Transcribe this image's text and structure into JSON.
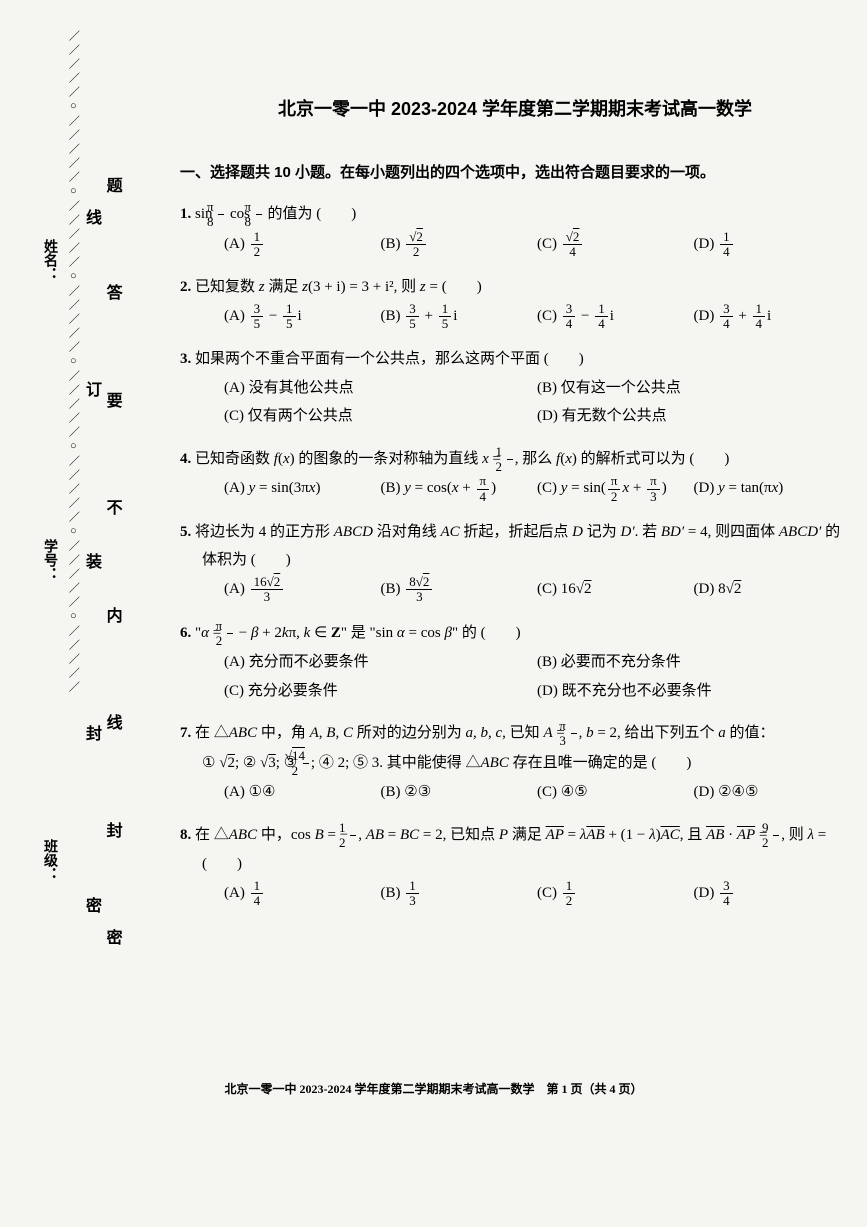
{
  "page": {
    "title": "北京一零一中 2023-2024 学年度第二学期期末考试高一数学",
    "section_heading": "一、选择题共 10 小题。在每小题列出的四个选项中，选出符合题目要求的一项。",
    "footer": "北京一零一中 2023-2024 学年度第二学期期末考试高一数学　第 1 页（共 4 页）",
    "font_family": "SimSun",
    "background_color": "#f5f5f2",
    "text_color": "#000000",
    "title_fontsize_pt": 18,
    "body_fontsize_pt": 15
  },
  "binding": {
    "side_labels": [
      "姓名：",
      "学号：",
      "班级："
    ],
    "seal_chars_top": [
      "题",
      "答",
      "要",
      "不",
      "内",
      "线",
      "封",
      "密"
    ],
    "seal_chars_side": [
      "线",
      "订",
      "装",
      "封",
      "密"
    ],
    "dash_pattern": "／／／／／○／／／／／○／／／／／○／／／／／○／／／／／○／／／／／○／／／／／○／／／／／"
  },
  "questions": [
    {
      "num": "1.",
      "stem_html": "sin <span class='frac'><span class='num'>π</span><span class='den'>8</span></span> cos <span class='frac'><span class='num'>π</span><span class='den'>8</span></span> 的值为 (　　)",
      "layout": "c4",
      "choices": [
        "(A) <span class='frac'><span class='num'>1</span><span class='den'>2</span></span>",
        "(B) <span class='frac'><span class='num'>√<span class='sqrt'>2</span></span><span class='den'>2</span></span>",
        "(C) <span class='frac'><span class='num'>√<span class='sqrt'>2</span></span><span class='den'>4</span></span>",
        "(D) <span class='frac'><span class='num'>1</span><span class='den'>4</span></span>"
      ]
    },
    {
      "num": "2.",
      "stem_html": "已知复数 <span class='ital'>z</span> 满足 <span class='ital'>z</span>(3 + i) = 3 + i², 则 <span class='ital'>z</span> = (　　)",
      "layout": "c4",
      "choices": [
        "(A) <span class='frac'><span class='num'>3</span><span class='den'>5</span></span> − <span class='frac'><span class='num'>1</span><span class='den'>5</span></span>i",
        "(B) <span class='frac'><span class='num'>3</span><span class='den'>5</span></span> + <span class='frac'><span class='num'>1</span><span class='den'>5</span></span>i",
        "(C) <span class='frac'><span class='num'>3</span><span class='den'>4</span></span> − <span class='frac'><span class='num'>1</span><span class='den'>4</span></span>i",
        "(D) <span class='frac'><span class='num'>3</span><span class='den'>4</span></span> + <span class='frac'><span class='num'>1</span><span class='den'>4</span></span>i"
      ]
    },
    {
      "num": "3.",
      "stem_html": "如果两个不重合平面有一个公共点，那么这两个平面 (　　)",
      "layout": "c2",
      "choices": [
        "(A) 没有其他公共点",
        "(B) 仅有这一个公共点",
        "(C) 仅有两个公共点",
        "(D) 有无数个公共点"
      ]
    },
    {
      "num": "4.",
      "stem_html": "已知奇函数 <span class='ital'>f</span>(<span class='ital'>x</span>) 的图象的一条对称轴为直线 <span class='ital'>x</span> = <span class='frac'><span class='num'>1</span><span class='den'>2</span></span>, 那么 <span class='ital'>f</span>(<span class='ital'>x</span>) 的解析式可以为 (　　)",
      "layout": "c4",
      "choices": [
        "(A) <span class='ital'>y</span> = sin(3π<span class='ital'>x</span>)",
        "(B) <span class='ital'>y</span> = cos(<span class='ital'>x</span> + <span class='frac'><span class='num'>π</span><span class='den'>4</span></span>)",
        "(C) <span class='ital'>y</span> = sin(<span class='frac'><span class='num'>π</span><span class='den'>2</span></span><span class='ital'>x</span> + <span class='frac'><span class='num'>π</span><span class='den'>3</span></span>)",
        "(D) <span class='ital'>y</span> = tan(π<span class='ital'>x</span>)"
      ]
    },
    {
      "num": "5.",
      "stem_html": "将边长为 4 的正方形 <span class='ital'>ABCD</span> 沿对角线 <span class='ital'>AC</span> 折起，折起后点 <span class='ital'>D</span> 记为 <span class='ital'>D′</span>. 若 <span class='ital'>BD′</span> = 4, 则四面体 <span class='ital'>ABCD′</span> 的体积为 (　　)",
      "layout": "c4",
      "choices": [
        "(A) <span class='frac'><span class='num'>16√<span class='sqrt'>2</span></span><span class='den'>3</span></span>",
        "(B) <span class='frac'><span class='num'>8√<span class='sqrt'>2</span></span><span class='den'>3</span></span>",
        "(C) 16√<span class='sqrt'>2</span>",
        "(D) 8√<span class='sqrt'>2</span>"
      ]
    },
    {
      "num": "6.",
      "stem_html": "\"<span class='ital'>α</span> = <span class='frac'><span class='num'>π</span><span class='den'>2</span></span> − <span class='ital'>β</span> + 2<span class='ital'>k</span>π, <span class='ital'>k</span> ∈ <b>Z</b>\" 是 \"sin <span class='ital'>α</span> = cos <span class='ital'>β</span>\" 的 (　　)",
      "layout": "c2",
      "choices": [
        "(A) 充分而不必要条件",
        "(B) 必要而不充分条件",
        "(C) 充分必要条件",
        "(D) 既不充分也不必要条件"
      ]
    },
    {
      "num": "7.",
      "stem_html": "在 △<span class='ital'>ABC</span> 中，角 <span class='ital'>A</span>, <span class='ital'>B</span>, <span class='ital'>C</span> 所对的边分别为 <span class='ital'>a</span>, <span class='ital'>b</span>, <span class='ital'>c</span>, 已知 <span class='ital'>A</span> = <span class='frac'><span class='num'>π</span><span class='den'>3</span></span>, <span class='ital'>b</span> = 2, 给出下列五个 <span class='ital'>a</span> 的值：<br>① √<span class='sqrt'>2</span>; ② √<span class='sqrt'>3</span>; ③ <span class='frac'><span class='num'>√<span class='sqrt'>14</span></span><span class='den'>2</span></span>; ④ 2; ⑤ 3. 其中能使得 △<span class='ital'>ABC</span> 存在且唯一确定的是 (　　)",
      "layout": "c4",
      "choices": [
        "(A) ①④",
        "(B) ②③",
        "(C) ④⑤",
        "(D) ②④⑤"
      ]
    },
    {
      "num": "8.",
      "stem_html": "在 △<span class='ital'>ABC</span> 中，cos <span class='ital'>B</span> = −<span class='frac'><span class='num'>1</span><span class='den'>2</span></span>, <span class='ital'>AB</span> = <span class='ital'>BC</span> = 2, 已知点 <span class='ital'>P</span> 满足 <span class='vec'>AP</span> = <span class='ital'>λ</span><span class='vec'>AB</span> + (1 − <span class='ital'>λ</span>)<span class='vec'>AC</span>, 且 <span class='vec'>AB</span> · <span class='vec'>AP</span> = <span class='frac'><span class='num'>9</span><span class='den'>2</span></span>, 则 <span class='ital'>λ</span> = (　　)",
      "layout": "c4",
      "choices": [
        "(A) <span class='frac'><span class='num'>1</span><span class='den'>4</span></span>",
        "(B) <span class='frac'><span class='num'>1</span><span class='den'>3</span></span>",
        "(C) <span class='frac'><span class='num'>1</span><span class='den'>2</span></span>",
        "(D) <span class='frac'><span class='num'>3</span><span class='den'>4</span></span>"
      ]
    }
  ]
}
